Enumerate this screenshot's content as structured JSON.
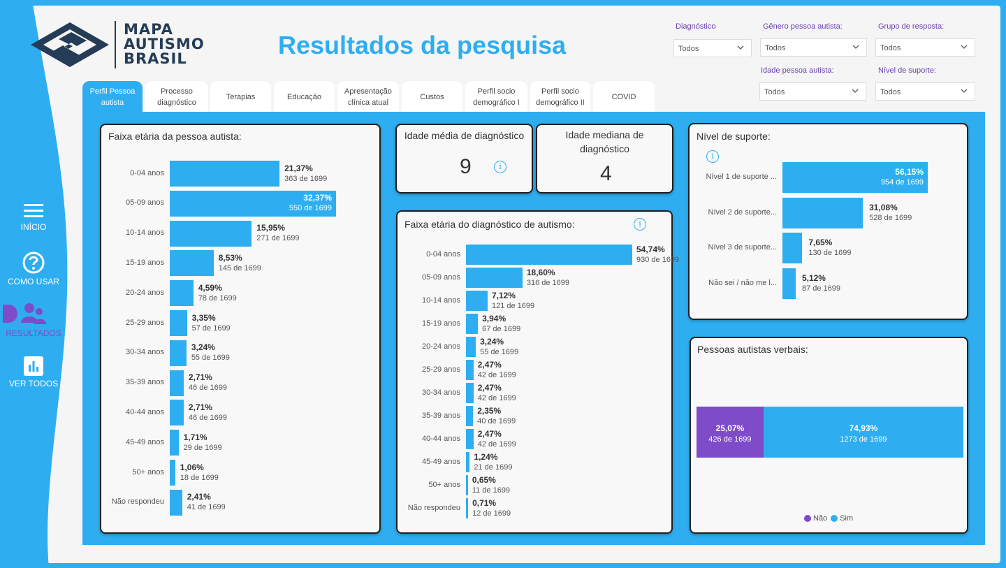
{
  "logo": {
    "line1": "MAPA",
    "line2": "AUTISMO",
    "line3": "BRASIL"
  },
  "page_title": "Resultados da pesquisa",
  "filters": [
    {
      "label": "Diagnóstico",
      "value": "Todos"
    },
    {
      "label": "Gênero pessoa autista:",
      "value": "Todos"
    },
    {
      "label": "Grupo de resposta:",
      "value": "Todos"
    },
    {
      "label": "Idade pessoa autista:",
      "value": "Todos"
    },
    {
      "label": "Nível de suporte:",
      "value": "Todos"
    }
  ],
  "nav": [
    {
      "label": "INÍCIO",
      "icon": "menu-icon"
    },
    {
      "label": "COMO USAR",
      "icon": "help-icon"
    },
    {
      "label": "RESULTADOS",
      "icon": "people-icon"
    },
    {
      "label": "VER TODOS",
      "icon": "bar-chart-icon"
    }
  ],
  "tabs": [
    {
      "l1": "Perfil Pessoa",
      "l2": "autista"
    },
    {
      "l1": "Processo",
      "l2": "diagnóstico"
    },
    {
      "l1": "Terapias",
      "l2": ""
    },
    {
      "l1": "Educação",
      "l2": ""
    },
    {
      "l1": "Apresentação",
      "l2": "clínica atual"
    },
    {
      "l1": "Custos",
      "l2": ""
    },
    {
      "l1": "Perfil socio",
      "l2": "demográfico I"
    },
    {
      "l1": "Perfil socio",
      "l2": "demográfico II"
    },
    {
      "l1": "COVID",
      "l2": ""
    }
  ],
  "colors": {
    "accent": "#2eaef0",
    "purple": "#7e4bc9",
    "dark": "#243c55"
  },
  "kpi": {
    "mean_title": "Idade média de diagnóstico",
    "mean_value": "9",
    "median_title_l1": "Idade mediana de",
    "median_title_l2": "diagnóstico",
    "median_value": "4"
  },
  "chart_data": [
    {
      "type": "bar",
      "orientation": "horizontal",
      "title": "Faixa etária da pessoa autista:",
      "categories": [
        "0-04 anos",
        "05-09 anos",
        "10-14 anos",
        "15-19 anos",
        "20-24 anos",
        "25-29 anos",
        "30-34 anos",
        "35-39 anos",
        "40-44 anos",
        "45-49 anos",
        "50+ anos",
        "Não respondeu"
      ],
      "values": [
        21.37,
        32.37,
        15.95,
        8.53,
        4.59,
        3.35,
        3.24,
        2.71,
        2.71,
        1.71,
        1.06,
        2.41
      ],
      "pct_labels": [
        "21,37%",
        "32,37%",
        "15,95%",
        "8,53%",
        "4,59%",
        "3,35%",
        "3,24%",
        "2,71%",
        "2,71%",
        "1,71%",
        "1,06%",
        "2,41%"
      ],
      "count_labels": [
        "363 de 1699",
        "550 de 1699",
        "271 de 1699",
        "145 de 1699",
        "78 de 1699",
        "57 de 1699",
        "55 de 1699",
        "46 de 1699",
        "46 de 1699",
        "29 de 1699",
        "18 de 1699",
        "41 de 1699"
      ]
    },
    {
      "type": "bar",
      "orientation": "horizontal",
      "title": "Faixa etária do diagnóstico de autismo:",
      "categories": [
        "0-04 anos",
        "05-09 anos",
        "10-14 anos",
        "15-19 anos",
        "20-24 anos",
        "25-29 anos",
        "30-34 anos",
        "35-39 anos",
        "40-44 anos",
        "45-49 anos",
        "50+ anos",
        "Não respondeu"
      ],
      "values": [
        54.74,
        18.6,
        7.12,
        3.94,
        3.24,
        2.47,
        2.47,
        2.35,
        2.47,
        1.24,
        0.65,
        0.71
      ],
      "pct_labels": [
        "54,74%",
        "18,60%",
        "7,12%",
        "3,94%",
        "3,24%",
        "2,47%",
        "2,47%",
        "2,35%",
        "2,47%",
        "1,24%",
        "0,65%",
        "0,71%"
      ],
      "count_labels": [
        "930 de 1699",
        "316 de 1699",
        "121 de 1699",
        "67 de 1699",
        "55 de 1699",
        "42 de 1699",
        "42 de 1699",
        "40 de 1699",
        "42 de 1699",
        "21 de 1699",
        "11 de 1699",
        "12 de 1699"
      ]
    },
    {
      "type": "bar",
      "orientation": "horizontal",
      "title": "Nível de suporte:",
      "categories": [
        "Nível 1 de suporte ...",
        "Nível 2 de suporte...",
        "Nível 3 de suporte...",
        "Não sei / não me l..."
      ],
      "values": [
        56.15,
        31.08,
        7.65,
        5.12
      ],
      "pct_labels": [
        "56,15%",
        "31,08%",
        "7,65%",
        "5,12%"
      ],
      "count_labels": [
        "954 de 1699",
        "528 de 1699",
        "130 de 1699",
        "87 de 1699"
      ]
    },
    {
      "type": "bar",
      "orientation": "stacked-horizontal",
      "title": "Pessoas autistas verbais:",
      "series": [
        {
          "name": "Não",
          "value": 25.07,
          "pct_label": "25,07%",
          "count_label": "426 de 1699"
        },
        {
          "name": "Sim",
          "value": 74.93,
          "pct_label": "74,93%",
          "count_label": "1273 de 1699"
        }
      ],
      "legend": "bottom"
    }
  ]
}
